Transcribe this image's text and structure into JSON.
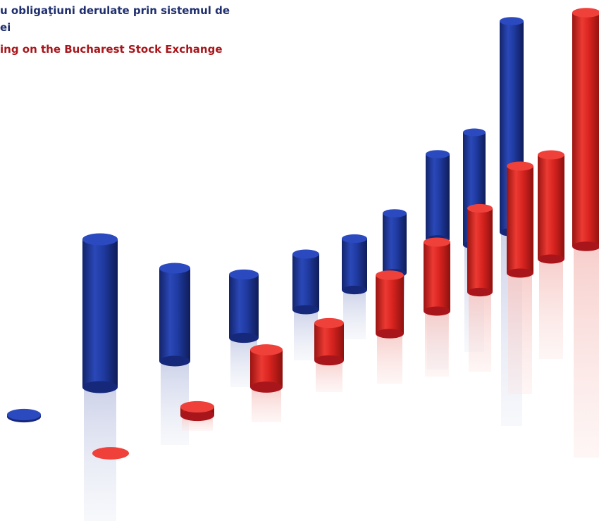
{
  "header": {
    "title_ro_line1": "u obligaţiuni derulate prin sistemul de",
    "title_ro_line2": "ei",
    "title_en": "ing on the Bucharest Stock Exchange"
  },
  "illustration": {
    "description_icon": "3d-cylinder-bar-chart-icon",
    "series_colors": {
      "blue": "#1f3aa0",
      "red": "#d8231f"
    }
  }
}
